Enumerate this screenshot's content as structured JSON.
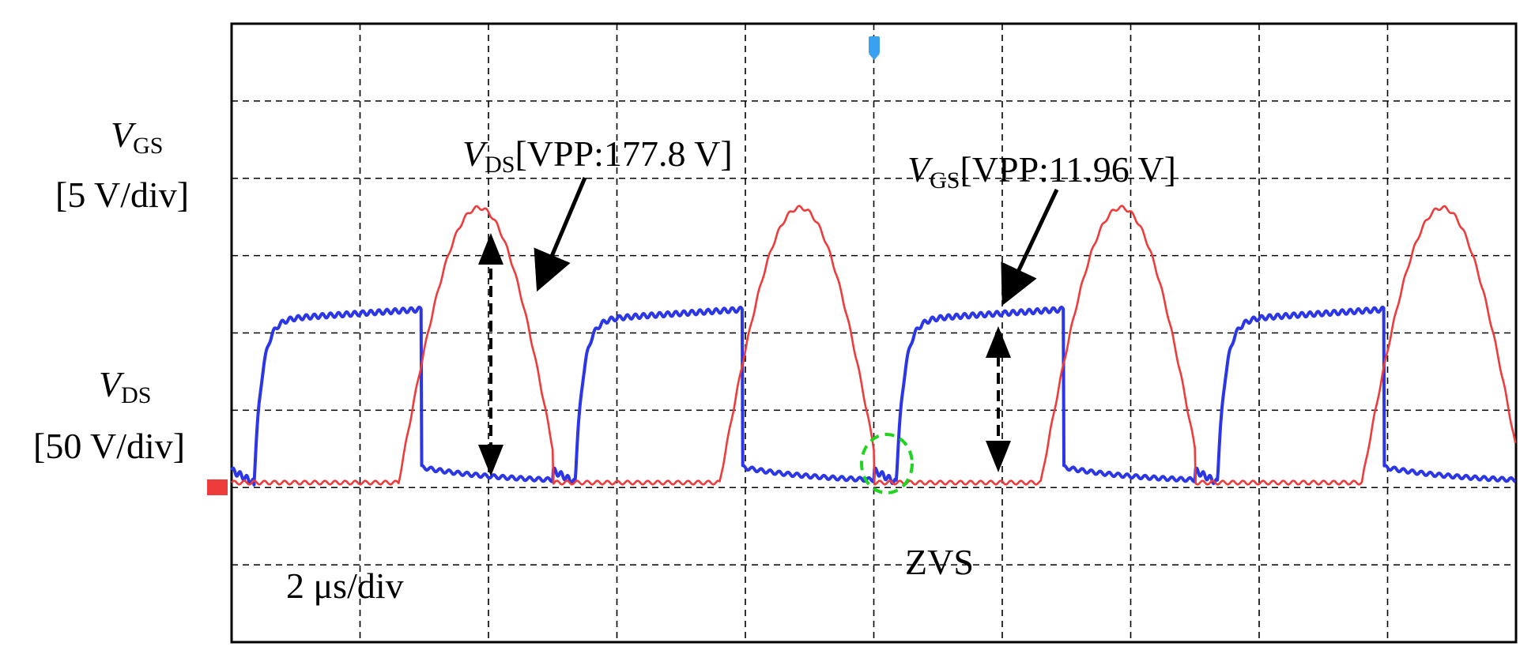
{
  "labels": {
    "vgs_axis_symbol": "V",
    "vgs_axis_sub": "GS",
    "vgs_scale": "[5 V/div]",
    "vds_axis_symbol": "V",
    "vds_axis_sub": "DS",
    "vds_scale": "[50 V/div]",
    "vds_annot_symbol": "V",
    "vds_annot_sub": "DS",
    "vds_annot_value": "[VPP:177.8 V]",
    "vgs_annot_symbol": "V",
    "vgs_annot_sub": "GS",
    "vgs_annot_value": "[VPP:11.96 V]",
    "zvs": "ZVS",
    "timebase": "2 μs/div"
  },
  "colors": {
    "vds_trace": "#ee3b3b",
    "vgs_trace": "#2b36e6",
    "zvs_marker": "#1fd41f",
    "trigger_marker": "#3aa0f0"
  },
  "chart_data": {
    "type": "line",
    "x_unit": "μs",
    "x_range": [
      0,
      20
    ],
    "divisions": {
      "x": 10,
      "y": 8
    },
    "grid": true,
    "period_us": 5,
    "series": [
      {
        "name": "VDS",
        "scale_per_div": 50,
        "unit": "V",
        "vpp": 177.8,
        "x": [
          0,
          1.0,
          2.0,
          3.0,
          4.0,
          5.0,
          6.0,
          7.0,
          8.0,
          9.0,
          10.0,
          11.0,
          12.0,
          13.0,
          14.0,
          15.0,
          16.0,
          17.0,
          18.0,
          19.0,
          20.0
        ],
        "values": [
          0,
          0,
          0,
          150,
          177.8,
          40,
          0,
          0,
          150,
          177.8,
          40,
          0,
          0,
          150,
          177.8,
          40,
          0,
          0,
          150,
          177.8,
          40
        ]
      },
      {
        "name": "VGS",
        "scale_per_div": 5,
        "unit": "V",
        "vpp": 11.96,
        "x": [
          0,
          0.3,
          0.8,
          2.9,
          3.0,
          5.3,
          5.8,
          7.9,
          8.0,
          10.3,
          10.8,
          12.9,
          13.0,
          15.3,
          15.8,
          17.9,
          18.0,
          20.0
        ],
        "values": [
          1,
          0,
          11,
          12,
          1,
          0,
          11,
          12,
          1,
          0,
          11,
          12,
          1,
          0,
          11,
          12,
          1,
          0
        ]
      }
    ],
    "annotations": [
      "VDS[VPP:177.8 V]",
      "VGS[VPP:11.96 V]",
      "ZVS",
      "2 μs/div"
    ]
  }
}
